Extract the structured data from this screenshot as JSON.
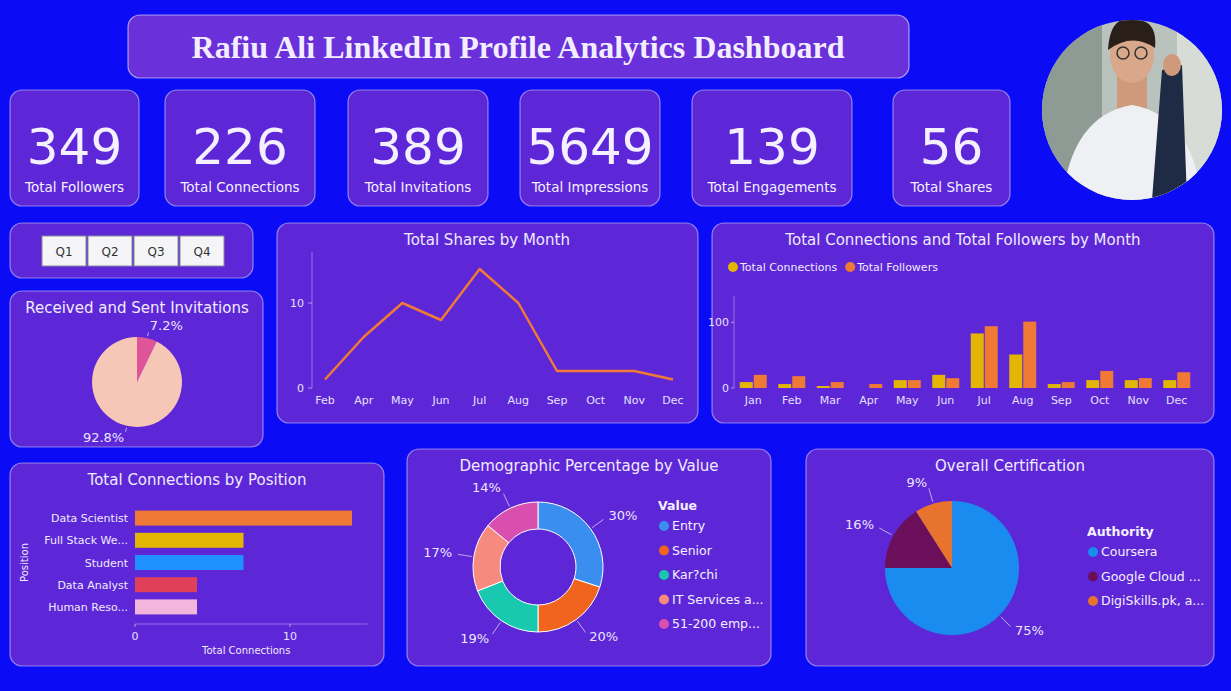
{
  "title": "Rafiu Ali LinkedIn Profile Analytics Dashboard",
  "kpis": [
    {
      "value": 349,
      "label": "Total Followers"
    },
    {
      "value": 226,
      "label": "Total Connections"
    },
    {
      "value": 389,
      "label": "Total Invitations"
    },
    {
      "value": 5649,
      "label": "Total Impressions"
    },
    {
      "value": 139,
      "label": "Total Engagements"
    },
    {
      "value": 56,
      "label": "Total Shares"
    }
  ],
  "slicer": [
    "Q1",
    "Q2",
    "Q3",
    "Q4"
  ],
  "chart_data": [
    {
      "type": "pie",
      "title": "Received and Sent Invitations",
      "values": [
        7.2,
        92.8
      ],
      "value_labels": [
        "7.2%",
        "92.8%"
      ],
      "colors": [
        "#e0559a",
        "#f6c7b6"
      ],
      "data_labels": true
    },
    {
      "type": "line",
      "title": "Total Shares by Month",
      "categories": [
        "Feb",
        "Apr",
        "May",
        "Jun",
        "Jul",
        "Aug",
        "Sep",
        "Oct",
        "Nov",
        "Dec"
      ],
      "values": [
        1,
        6,
        10,
        8,
        14,
        10,
        2,
        2,
        2,
        1
      ],
      "color": "#f07a35",
      "ylim": [
        0,
        16
      ],
      "yticks": [
        0,
        10
      ],
      "grid": false
    },
    {
      "type": "bar",
      "title": "Total Connections and Total Followers by Month",
      "categories": [
        "Jan",
        "Feb",
        "Mar",
        "Apr",
        "May",
        "Jun",
        "Jul",
        "Aug",
        "Sep",
        "Oct",
        "Nov",
        "Dec"
      ],
      "series": [
        {
          "name": "Total Connections",
          "color": "#e3b505",
          "values": [
            9,
            6,
            3,
            0,
            12,
            20,
            83,
            51,
            6,
            12,
            12,
            12
          ]
        },
        {
          "name": "Total Followers",
          "color": "#f07a35",
          "values": [
            20,
            18,
            9,
            6,
            12,
            15,
            94,
            101,
            9,
            26,
            15,
            24
          ]
        }
      ],
      "ylim": [
        0,
        140
      ],
      "yticks": [
        0,
        100
      ],
      "legend": "top-left",
      "grid": false
    },
    {
      "type": "bar",
      "orientation": "horizontal",
      "title": "Total Connections by Position",
      "x_label": "Total Connections",
      "y_label": "Position",
      "categories": [
        "Data Scientist",
        "Full Stack We...",
        "Student",
        "Data Analyst",
        "Human Reso..."
      ],
      "values": [
        14,
        7,
        7,
        4,
        4
      ],
      "colors": [
        "#f07a35",
        "#e3b505",
        "#1e90ff",
        "#e0405a",
        "#f2b6dc"
      ],
      "xlim": [
        0,
        15
      ],
      "xticks": [
        0,
        10
      ],
      "grid": false
    },
    {
      "type": "donut",
      "title": "Demographic Percentage by Value",
      "legend_title": "Value",
      "categories": [
        "Entry",
        "Senior",
        "Kar?chi",
        "IT Services a...",
        "51-200 emp..."
      ],
      "values": [
        30,
        20,
        19,
        17,
        14
      ],
      "value_labels": [
        "30%",
        "20%",
        "19%",
        "17%",
        "14%"
      ],
      "colors": [
        "#3a8ef0",
        "#f0641e",
        "#18c9b0",
        "#f78a7e",
        "#d94fb0"
      ],
      "data_labels": true,
      "legend": "right"
    },
    {
      "type": "pie",
      "title": "Overall Certification",
      "legend_title": "Authority",
      "categories": [
        "Coursera",
        "Google Cloud ...",
        "DigiSkills.pk, a..."
      ],
      "values": [
        75,
        16,
        9
      ],
      "value_labels": [
        "75%",
        "16%",
        "9%"
      ],
      "colors": [
        "#1a8cf0",
        "#6b0f5a",
        "#e8732f"
      ],
      "data_labels": true,
      "legend": "right"
    }
  ]
}
